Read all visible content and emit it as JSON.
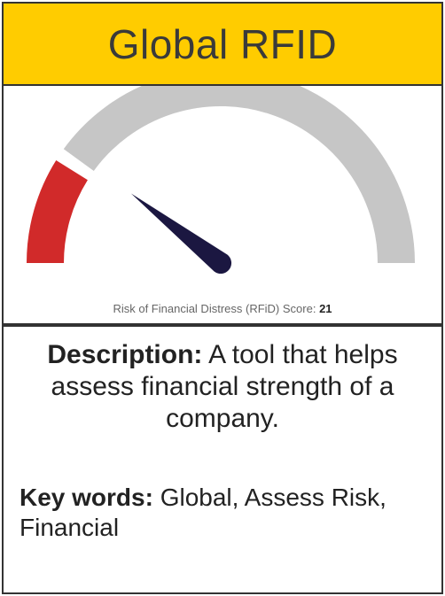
{
  "header": {
    "title": "Global RFID"
  },
  "gauge": {
    "caption_prefix": "Risk of Financial Distress (RFiD) Score:",
    "score": "21",
    "score_value": 21,
    "scale_max": 100,
    "track_color": "#c6c6c6",
    "risk_color": "#d12a2a",
    "needle_color": "#1b1741"
  },
  "description": {
    "label": "Description:",
    "text": " A tool that helps assess financial strength of a company."
  },
  "keywords": {
    "label": "Key words:",
    "text": " Global, Assess Risk, Financial"
  },
  "colors": {
    "header_bg": "#ffcc00",
    "border": "#333333"
  }
}
